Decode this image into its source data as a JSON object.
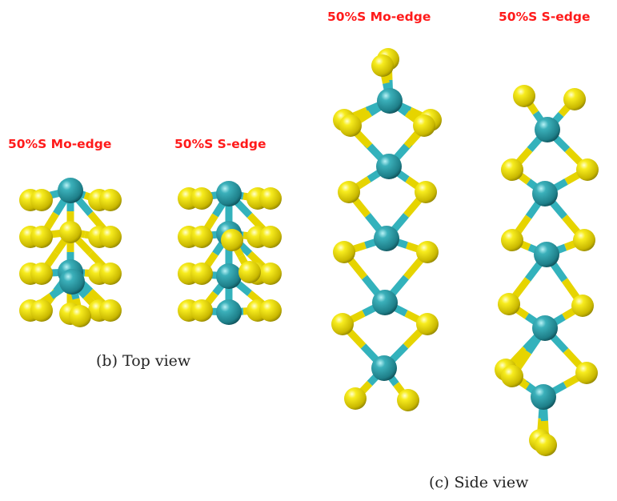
{
  "labels": {
    "top_mo_edge": "50%S Mo-edge",
    "top_s_edge": "50%S S-edge",
    "side_mo_edge": "50%S Mo-edge",
    "side_s_edge": "50%S S-edge"
  },
  "captions": {
    "top_view": "(b) Top view",
    "side_view": "(c) Side view"
  },
  "colors": {
    "label_red": "#ff1a1a",
    "mo_atom": "#2a9aa6",
    "s_atom": "#ecd900",
    "mo_bond": "#33b2bc",
    "s_bond": "#e6d400"
  }
}
